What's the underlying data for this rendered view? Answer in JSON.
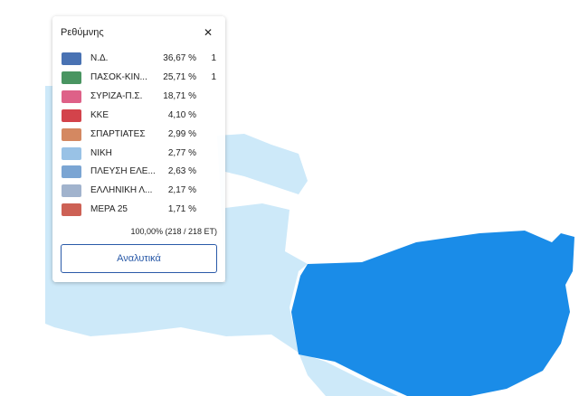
{
  "popup": {
    "title": "Ρεθύμνης",
    "close": "✕",
    "rows": [
      {
        "party": "Ν.Δ.",
        "percent": "36,67 %",
        "seats": "1"
      },
      {
        "party": "ΠΑΣΟΚ-ΚΙΝ...",
        "percent": "25,71 %",
        "seats": "1"
      },
      {
        "party": "ΣΥΡΙΖΑ-Π.Σ.",
        "percent": "18,71 %",
        "seats": ""
      },
      {
        "party": "ΚΚΕ",
        "percent": "4,10 %",
        "seats": ""
      },
      {
        "party": "ΣΠΑΡΤΙΑΤΕΣ",
        "percent": "2,99 %",
        "seats": ""
      },
      {
        "party": "ΝΙΚΗ",
        "percent": "2,77 %",
        "seats": ""
      },
      {
        "party": "ΠΛΕΥΣΗ ΕΛΕ...",
        "percent": "2,63 %",
        "seats": ""
      },
      {
        "party": "ΕΛΛΗΝΙΚΗ Λ...",
        "percent": "2,17 %",
        "seats": ""
      },
      {
        "party": "ΜΕΡΑ 25",
        "percent": "1,71 %",
        "seats": ""
      }
    ],
    "footer": "100,00% (218 / 218 ΕΤ)",
    "button": "Αναλυτικά"
  }
}
